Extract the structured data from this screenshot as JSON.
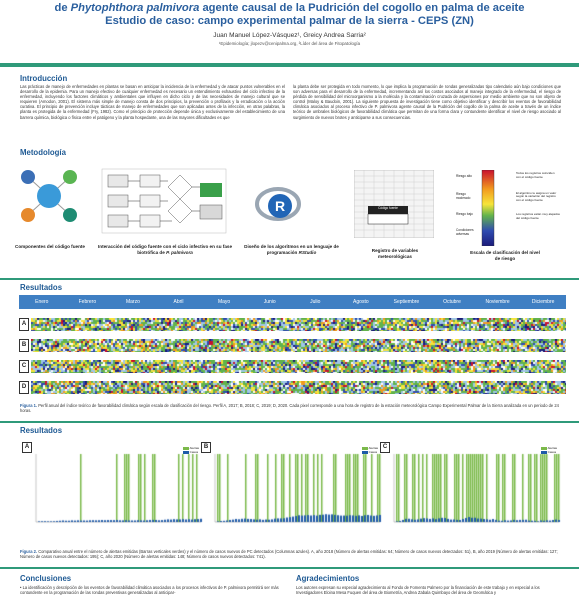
{
  "header": {
    "title_line1_prefix": "de",
    "title_line1_species": "Phytophthora palmivora",
    "title_line1_rest": "agente causal de la Pudrición del cogollo en palma de aceite",
    "title_line2": "Estudio de caso: campo experimental palmar de la sierra - CEPS (ZN)",
    "authors": "Juan Manuel López-Vásquez¹, Greicy Andrea Sarria²",
    "affiliations": "¹Epidemiología; jlopezv@cenipalma.org, ²Líder del área de Fitopatología"
  },
  "introduccion": {
    "heading": "Introducción",
    "col1": "Las prácticas de manejo de enfermedades en plantas se basan en anticipar la incidencia de la enfermedad y de atacar puntos vulnerables en el desarrollo de la epidemia. Para un manejo efectivo de cualquier enfermedad es necesario un entendimiento exhaustivo del ciclo infectivo de la enfermedad, incluyendo los factores climáticos y ambientales que influyen en dicho ciclo y de las necesidades de manejo cultural que se requieren (Amodon, 2001). El sistema más simple de manejo consta de dos principios, la prevención o profilaxis y la erradicación o la acción curativa. El principio de prevención incluye tácticas de manejo de enfermedades que son aplicadas antes de la infección, en otras palabras, la planta es protegida de la enfermedad (Fry, 1982). Como el principio de protección depende única y exclusivamente del establecimiento de una barrera química, biológica o física entre el patógeno y la planta hospedante, una de las mayores dificultades es que",
    "col2": "la planta debe ser protegida en todo momento, lo que implica la programación de rondas generalizadas tipo calendario aún bajo condiciones que son adversas para el desarrollo de la enfermedad, incrementando así los costos asociados al manejo integrado de la enfermedad, el riesgo de pérdida de sensibilidad del microorganismo a la molécula y la contaminación cruzada de aspersiones por medio ambiente que no son objeto de control (Maloy & Baudoin, 2001). La siguiente propuesta de investigación tiene como objetivo identificar y describir los eventos de favorabilidad climática asociados al proceso infectivo de P. palmivora agente causal de la Pudrición del cogollo de la palma de aceite a través de un índice teórico de umbrales biológicos de favorabilidad climática que permitan de una forma clara y contundente identificar el nivel de riesgo asociado al surgimiento de nuevos brotes y anticiparse a sus consecuencias."
  },
  "metodologia": {
    "heading": "Metodología",
    "step1": "Componentes del código fuente",
    "step2_a": "Interacción del código fuente con el ciclo infectivo en su fase biotrófica de",
    "step2_b": "P. palmivora",
    "step3_a": "Diseño de los algoritmos en un lenguaje de programación",
    "step3_b": "RStudio",
    "step4": "Registro de variables meteorológicas",
    "step5": "Escala de clasificación del nivel de riesgo",
    "scale_labels": [
      "Riesgo alto",
      "Riesgo moderado",
      "Riesgo bajo",
      "Condiciones adversas"
    ],
    "scale_notes": [
      "Todos los registros coinciden con el código fuente",
      "El algoritmo le asigna un valor según la variación del registro con el código fuente",
      "Los registros están muy alejados del código fuente"
    ],
    "table_title": "Código fuente"
  },
  "resultados1": {
    "heading": "Resultados",
    "months": [
      "Enero",
      "Febrero",
      "Marzo",
      "Abril",
      "Mayo",
      "Junio",
      "Julio",
      "Agosto",
      "Septiembre",
      "Octubre",
      "Noviembre",
      "Diciembre"
    ],
    "rows": [
      "A",
      "B",
      "C",
      "D"
    ],
    "caption_label": "Figura 1.",
    "caption": "Perfil anual del índice teórico de favorabilidad climática según escala de clasificación del riesgo. Perfil A, 2017; B, 2018; C, 2019; D, 2020. Cada pixel corresponde a una hora de registro de la estación meteorológica Campo Experimental Palmar de la Sierra analizada en un periodo de 24 horas."
  },
  "resultados2": {
    "heading": "Resultados",
    "charts": [
      "A",
      "B",
      "C"
    ],
    "legend_alerts": "Alertas",
    "legend_cases": "Casos",
    "caption_label": "Figura 2.",
    "caption": "Comparativo anual entre el número de alertas emitidas (Barras verticales verdes) y el número de casos nuevos de PC detectados (Columnas azules). A, año 2018 (Número de alertas emitidas: 64; Número de casos nuevos detectados: 51), B, año 2019 (Número de alertas emitidas: 127; Número de casos nuevos detectados: 195); C, año 2020 (Número de alertas emitidas: 148; Número de casos nuevos detectados: 741)."
  },
  "conclusiones": {
    "heading": "Conclusiones",
    "text": "• La identificación y descripción de los eventos de favorabilidad climática asociados a los procesos infectivos de P. palmivora permitirá ser más contundente en la programación de las rondas preventivas generalizadas al anticipar-"
  },
  "agradecimientos": {
    "heading": "Agradecimientos",
    "text": "Los autores expresan su especial agradecimiento al Fondo de Fomento Palmero por la financiación de este trabajo y en especial a los Investigadores Eloina Mesa Fuquen del área de Biometría, Andrea Zabala Quimbayo del área de Geomática y"
  },
  "colors": {
    "title": "#2a5f9e",
    "rule": "#2f9a7a",
    "month_bar": "#3f7fc3",
    "alerts": "#7bb94a",
    "cases": "#1f5aa8"
  }
}
